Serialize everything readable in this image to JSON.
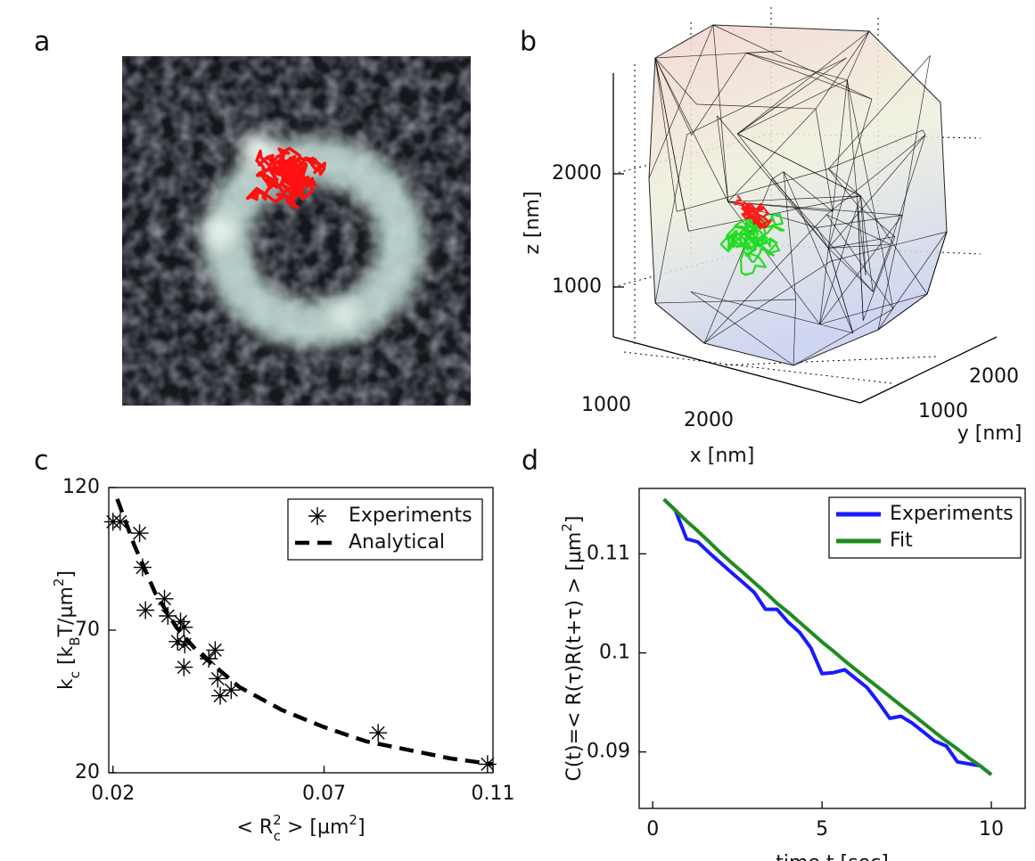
{
  "panels": {
    "a": {
      "label": "a"
    },
    "b": {
      "label": "b",
      "zlabel": "z  [nm]",
      "xlabel": "x  [nm]",
      "ylabel": "y  [nm]",
      "zticks": [
        1000,
        2000
      ],
      "xticks": [
        1000,
        2000
      ],
      "yticks": [
        1000,
        2000
      ]
    }
  },
  "chart_data": [
    {
      "type": "scatter",
      "panel_label": "c",
      "ylabel_parts": [
        "k",
        "c",
        "  [k",
        "B",
        "T/µm",
        "2",
        "]"
      ],
      "xlabel_parts": [
        "< R",
        "2",
        "c",
        " >   [µm",
        "2",
        "]"
      ],
      "xlim": [
        0.019,
        0.11
      ],
      "ylim": [
        20,
        120
      ],
      "xticks": [
        0.02,
        0.07,
        0.11
      ],
      "yticks": [
        20,
        70,
        120
      ],
      "grid": false,
      "legend": "upper right",
      "series": [
        {
          "name": "Experiments",
          "color": "#000000",
          "marker": "asterisk",
          "x": [
            0.02,
            0.0217,
            0.0263,
            0.027,
            0.0277,
            0.0322,
            0.033,
            0.036,
            0.0368,
            0.0353,
            0.037,
            0.0368,
            0.0427,
            0.0442,
            0.0448,
            0.0454,
            0.048,
            0.0828,
            0.1087
          ],
          "values": [
            108,
            108,
            104,
            92,
            77,
            81,
            75,
            73,
            71,
            66,
            65,
            57,
            60,
            63,
            53,
            47,
            49,
            34,
            23
          ]
        },
        {
          "name": "Analytical",
          "color": "#000000",
          "dash": true,
          "x": [
            0.021,
            0.025,
            0.03,
            0.035,
            0.04,
            0.05,
            0.06,
            0.07,
            0.08,
            0.09,
            0.1,
            0.11
          ],
          "values": [
            116,
            100,
            83,
            71,
            62.5,
            50,
            42,
            36,
            31,
            28,
            25,
            23
          ]
        }
      ]
    },
    {
      "type": "line",
      "panel_label": "d",
      "ylabel_parts": [
        "C(t)=< R(τ)R(t+τ) >   [µm",
        "2",
        "]"
      ],
      "xlabel_parts": [
        "time  t   [sec]"
      ],
      "xlim": [
        -0.4,
        11
      ],
      "ylim": [
        0.0843,
        0.1166
      ],
      "xticks": [
        0,
        5,
        10
      ],
      "yticks": [
        0.09,
        0.1,
        0.11
      ],
      "grid": false,
      "legend": "upper right",
      "series": [
        {
          "name": "Experiments",
          "color": "#1a1aff",
          "x": [
            0.33,
            0.67,
            1,
            1.33,
            1.67,
            2,
            2.33,
            2.67,
            3,
            3.33,
            3.67,
            4,
            4.33,
            4.67,
            5,
            5.33,
            5.67,
            6,
            6.33,
            6.67,
            7,
            7.33,
            7.67,
            8,
            8.33,
            8.67,
            9,
            9.33,
            9.67,
            10
          ],
          "values": [
            0.1155,
            0.1144,
            0.1115,
            0.1112,
            0.1101,
            0.1091,
            0.1081,
            0.1071,
            0.1061,
            0.1044,
            0.1044,
            0.1031,
            0.1021,
            0.1005,
            0.0979,
            0.098,
            0.0983,
            0.0974,
            0.0965,
            0.095,
            0.0934,
            0.0936,
            0.0929,
            0.092,
            0.0911,
            0.0906,
            0.089,
            0.0888,
            0.0886,
            0.0877
          ]
        },
        {
          "name": "Fit",
          "color": "#1e8c1e",
          "x": [
            0.33,
            0.67,
            1,
            1.33,
            1.67,
            2,
            2.33,
            2.67,
            3,
            3.33,
            3.67,
            4,
            4.33,
            4.67,
            5,
            5.33,
            5.67,
            6,
            6.33,
            6.67,
            7,
            7.33,
            7.67,
            8,
            8.33,
            8.67,
            9,
            9.33,
            9.67,
            10
          ],
          "values": [
            0.1155,
            0.1144,
            0.1133,
            0.1123,
            0.1112,
            0.1101,
            0.1091,
            0.1081,
            0.1071,
            0.1061,
            0.105,
            0.1041,
            0.1031,
            0.1021,
            0.1011,
            0.1002,
            0.0992,
            0.0983,
            0.0974,
            0.0965,
            0.0956,
            0.0947,
            0.0938,
            0.0929,
            0.092,
            0.0911,
            0.0903,
            0.0894,
            0.0886,
            0.0877
          ]
        }
      ]
    }
  ]
}
